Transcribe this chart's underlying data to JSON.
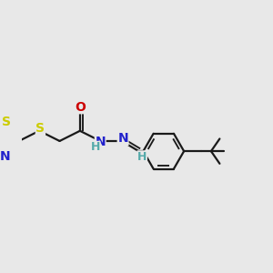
{
  "background_color": "#e8e8e8",
  "bond_color": "#1a1a1a",
  "bond_lw": 1.6,
  "figsize": [
    3.0,
    3.0
  ],
  "dpi": 100,
  "S_color": "#cccc00",
  "N_color": "#2222cc",
  "O_color": "#cc0000",
  "H_color": "#55aaaa",
  "C_color": "#1a1a1a",
  "xlim": [
    -1.5,
    9.5
  ],
  "ylim": [
    -2.5,
    3.5
  ]
}
